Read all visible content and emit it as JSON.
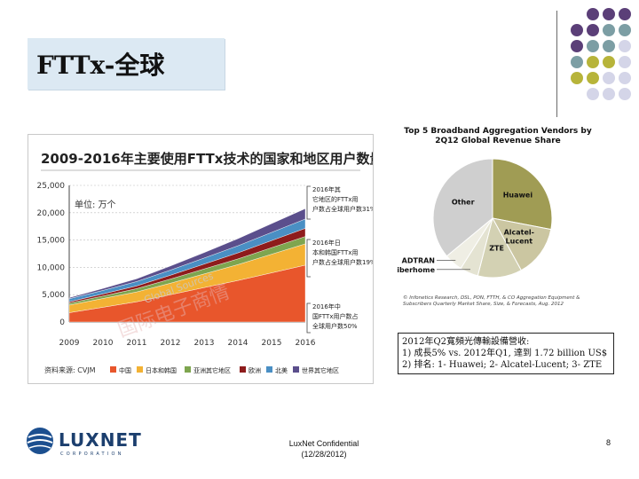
{
  "slide": {
    "title": "FTTx-全球",
    "accent_colors": {
      "title_box": "#dce9f3",
      "dot_purple": "#5b3f78",
      "dot_teal": "#7c9ea4",
      "dot_olive": "#b7b43a",
      "dot_grey": "#d4d5e8"
    }
  },
  "left_chart": {
    "header": "2009-2016年主要使用FTTx技术的国家和地区用户数量对比",
    "unit_label": "单位: 万个",
    "watermark_1": "Global Sources",
    "watermark_2": "国际电子商情",
    "source_label": "资料来源: CVJM",
    "annotations": [
      "2016年其它地区的FTTx用户数占全球用户数31%",
      "2016年日本和韩国FTTx用户数占全球用户数19%",
      "2016年中国FTTx用户数占全球用户数50%"
    ]
  },
  "chart_data": [
    {
      "type": "area",
      "title": "2009-2016年主要使用FTTx技术的国家和地区用户数量对比",
      "ylabel": "单位: 万个",
      "x": [
        "2009",
        "2010",
        "2011",
        "2012",
        "2013",
        "2014",
        "2015",
        "2016"
      ],
      "ylim": [
        0,
        25000
      ],
      "yticks": [
        "0",
        "5,000",
        "10,000",
        "15,000",
        "20,000",
        "25,000"
      ],
      "stacked": true,
      "grid": true,
      "legend": "bottom",
      "series": [
        {
          "name": "中国",
          "color": "#e8562c",
          "values": [
            1700,
            2700,
            3700,
            5000,
            6300,
            7600,
            9000,
            10400
          ]
        },
        {
          "name": "日本和韩国",
          "color": "#f3b234",
          "values": [
            1400,
            1600,
            1800,
            2100,
            2500,
            2900,
            3400,
            3900
          ]
        },
        {
          "name": "亚洲其它地区",
          "color": "#7ea54f",
          "values": [
            350,
            450,
            600,
            750,
            900,
            1050,
            1200,
            1350
          ]
        },
        {
          "name": "欧洲",
          "color": "#8e1c1c",
          "values": [
            250,
            380,
            500,
            700,
            900,
            1100,
            1300,
            1500
          ]
        },
        {
          "name": "北美",
          "color": "#4a8fc4",
          "values": [
            550,
            650,
            800,
            950,
            1100,
            1300,
            1500,
            1700
          ]
        },
        {
          "name": "世界其它地区",
          "color": "#5b4f8c",
          "values": [
            200,
            350,
            500,
            750,
            1000,
            1300,
            1600,
            1900
          ]
        }
      ]
    },
    {
      "type": "pie",
      "title": "Top 5 Broadband Aggregation Vendors by 2Q12 Global Revenue Share",
      "series": [
        {
          "name": "Huawei",
          "color": "#a09c54",
          "value": 28
        },
        {
          "name": "Alcatel-Lucent",
          "color": "#cbc6a1",
          "value": 14
        },
        {
          "name": "ZTE",
          "color": "#d3d1b3",
          "value": 12
        },
        {
          "name": "Fiberhome",
          "color": "#e4e3d2",
          "value": 5
        },
        {
          "name": "ADTRAN",
          "color": "#efeee4",
          "value": 5
        },
        {
          "name": "Other",
          "color": "#cfcfcf",
          "value": 36
        }
      ],
      "source": "© Infonetics Research, DSL, PON, FTTH, & CO Aggregation Equipment & Subscribers Quarterly Market Share, Size, & Forecasts, Aug. 2012"
    }
  ],
  "textbox": {
    "line1": "2012年Q2寬頻光傳輸設備營收:",
    "line2": "1) 成長5% vs. 2012年Q1, 達到 1.72 billion US$",
    "line3": "2) 排名: 1- Huawei; 2- Alcatel-Lucent; 3- ZTE"
  },
  "footer": {
    "logo_text": "LUXNET",
    "logo_sub": "CORPORATION",
    "confidential": "LuxNet Confidential",
    "date": "(12/28/2012)",
    "page": "8"
  }
}
